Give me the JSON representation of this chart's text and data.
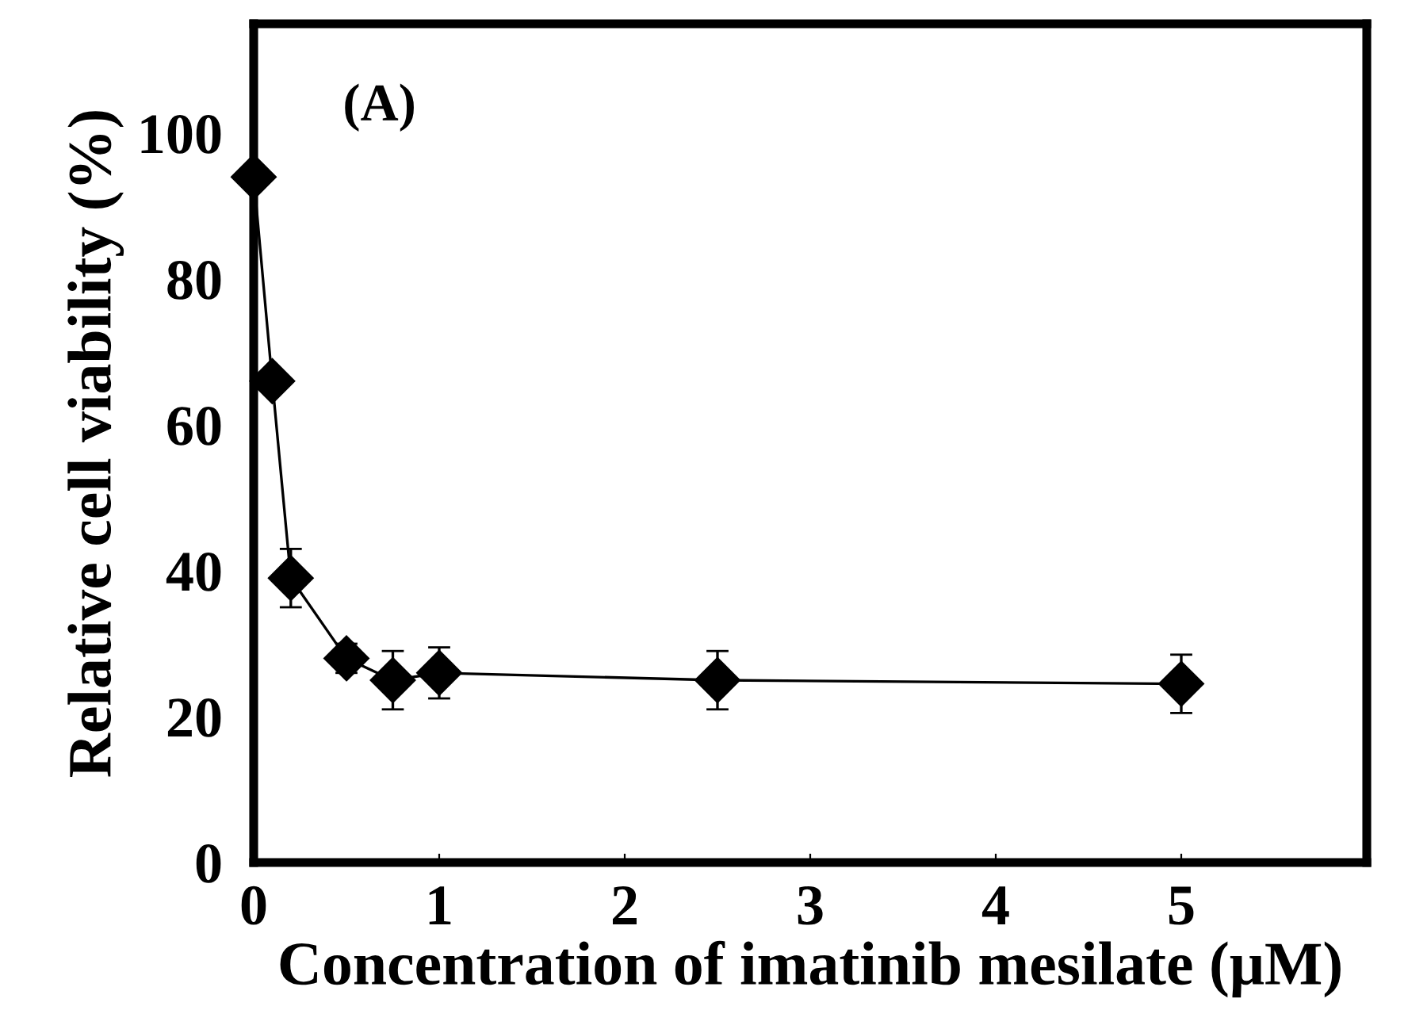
{
  "chart_data": {
    "type": "line",
    "xlabel": "Concentration of imatinib mesilate (μM)",
    "ylabel": "Relative cell viability (%)",
    "annotations": [
      "(A)"
    ],
    "x": [
      0,
      0.1,
      0.2,
      0.5,
      0.75,
      1,
      2.5,
      5
    ],
    "series": [
      {
        "color": "#000000",
        "values": [
          94,
          66,
          39,
          28,
          25,
          26,
          25,
          24.5
        ],
        "errors": [
          null,
          null,
          4,
          2,
          4,
          3.5,
          4,
          4
        ]
      }
    ],
    "xlim": [
      0,
      6
    ],
    "xticks": [
      0,
      1,
      2,
      3,
      4,
      5
    ],
    "ylim": [
      0,
      115
    ],
    "yticks": [
      0,
      20,
      40,
      60,
      80,
      100
    ],
    "marker": "diamond",
    "line_style": "solid",
    "grid": false,
    "legend": false
  }
}
